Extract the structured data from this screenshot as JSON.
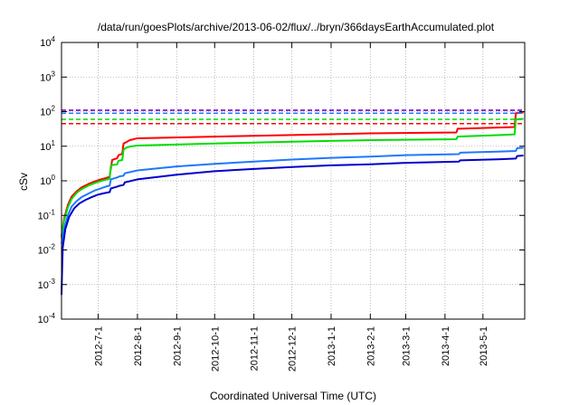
{
  "chart_data": {
    "type": "line",
    "title": "/data/run/goesPlots/archive/2013-06-02/flux/../bryn/366daysEarthAccumulated.plot",
    "xlabel": "Coordinated Universal Time (UTC)",
    "ylabel": "cSv",
    "xlim": [
      "2012-06-02",
      "2013-06-03"
    ],
    "yscale": "log",
    "ylim": [
      0.0001,
      10000
    ],
    "grid": true,
    "xticks": [
      "2012-7-1",
      "2012-8-1",
      "2012-9-1",
      "2012-10-1",
      "2012-11-1",
      "2012-12-1",
      "2013-1-1",
      "2013-2-1",
      "2013-3-1",
      "2013-4-1",
      "2013-5-1"
    ],
    "xtick_dates": [
      "2012-07-01",
      "2012-08-01",
      "2012-09-01",
      "2012-10-01",
      "2012-11-01",
      "2012-12-01",
      "2013-01-01",
      "2013-02-01",
      "2013-03-01",
      "2013-04-01",
      "2013-05-01"
    ],
    "yticks": [
      {
        "value": 0.0001,
        "base": "10",
        "exp": "-4"
      },
      {
        "value": 0.001,
        "base": "10",
        "exp": "-3"
      },
      {
        "value": 0.01,
        "base": "10",
        "exp": "-2"
      },
      {
        "value": 0.1,
        "base": "10",
        "exp": "-1"
      },
      {
        "value": 1,
        "base": "10",
        "exp": "0"
      },
      {
        "value": 10,
        "base": "10",
        "exp": "1"
      },
      {
        "value": 100,
        "base": "10",
        "exp": "2"
      },
      {
        "value": 1000,
        "base": "10",
        "exp": "3"
      },
      {
        "value": 10000,
        "base": "10",
        "exp": "4"
      }
    ],
    "series": [
      {
        "color": "#ff0000",
        "style": "solid",
        "x": [
          "2012-06-02",
          "2012-06-04",
          "2012-06-07",
          "2012-06-10",
          "2012-06-14",
          "2012-06-18",
          "2012-06-23",
          "2012-06-28",
          "2012-07-03",
          "2012-07-07",
          "2012-07-10",
          "2012-07-12",
          "2012-07-16",
          "2012-07-17",
          "2012-07-20",
          "2012-07-21",
          "2012-07-22",
          "2012-07-23",
          "2012-07-26",
          "2012-08-01",
          "2012-10-01",
          "2012-12-01",
          "2013-02-01",
          "2013-04-10",
          "2013-04-11",
          "2013-05-15",
          "2013-05-26",
          "2013-05-27",
          "2013-06-02"
        ],
        "y": [
          0.025,
          0.08,
          0.2,
          0.35,
          0.5,
          0.65,
          0.8,
          0.95,
          1.1,
          1.2,
          1.3,
          4.0,
          4.5,
          5.5,
          6.0,
          12.0,
          12.5,
          13.0,
          15.0,
          17.0,
          19.0,
          21.0,
          23.5,
          25.0,
          32.0,
          35.0,
          36.0,
          90.0,
          95.0
        ]
      },
      {
        "color": "#00dd00",
        "style": "solid",
        "x": [
          "2012-06-02",
          "2012-06-04",
          "2012-06-07",
          "2012-06-10",
          "2012-06-14",
          "2012-06-18",
          "2012-06-23",
          "2012-06-28",
          "2012-07-03",
          "2012-07-07",
          "2012-07-10",
          "2012-07-11",
          "2012-07-16",
          "2012-07-17",
          "2012-07-20",
          "2012-07-21",
          "2012-07-23",
          "2012-07-26",
          "2012-08-01",
          "2012-10-01",
          "2012-12-01",
          "2013-02-01",
          "2013-04-10",
          "2013-04-11",
          "2013-05-15",
          "2013-05-26",
          "2013-05-27",
          "2013-06-02"
        ],
        "y": [
          0.022,
          0.07,
          0.17,
          0.3,
          0.45,
          0.58,
          0.72,
          0.85,
          0.98,
          1.08,
          1.15,
          2.8,
          3.0,
          3.8,
          4.0,
          8.0,
          9.0,
          9.8,
          10.5,
          12.0,
          13.5,
          15.0,
          16.0,
          19.0,
          21.0,
          22.0,
          60.0,
          62.0
        ]
      },
      {
        "color": "#1e78ff",
        "style": "solid",
        "x": [
          "2012-06-02",
          "2012-06-04",
          "2012-06-07",
          "2012-06-10",
          "2012-06-14",
          "2012-06-18",
          "2012-06-23",
          "2012-06-28",
          "2012-07-03",
          "2012-07-07",
          "2012-07-10",
          "2012-07-11",
          "2012-07-16",
          "2012-07-18",
          "2012-07-21",
          "2012-07-22",
          "2012-08-01",
          "2012-09-01",
          "2012-10-01",
          "2012-11-01",
          "2012-12-01",
          "2013-01-01",
          "2013-02-01",
          "2013-03-01",
          "2013-04-12",
          "2013-04-13",
          "2013-05-15",
          "2013-05-27",
          "2013-05-28",
          "2013-06-02"
        ],
        "y": [
          0.015,
          0.04,
          0.1,
          0.18,
          0.26,
          0.34,
          0.42,
          0.52,
          0.6,
          0.68,
          0.72,
          1.1,
          1.25,
          1.35,
          1.4,
          1.65,
          2.0,
          2.6,
          3.1,
          3.6,
          4.1,
          4.6,
          5.0,
          5.5,
          5.9,
          6.5,
          7.0,
          7.3,
          8.8,
          9.0
        ]
      },
      {
        "color": "#0000cc",
        "style": "solid",
        "x": [
          "2012-06-02",
          "2012-06-02.5",
          "2012-06-03",
          "2012-06-05",
          "2012-06-08",
          "2012-06-12",
          "2012-06-16",
          "2012-06-21",
          "2012-06-26",
          "2012-07-01",
          "2012-07-06",
          "2012-07-10",
          "2012-07-11",
          "2012-07-16",
          "2012-07-18",
          "2012-07-21",
          "2012-07-22",
          "2012-08-01",
          "2012-09-01",
          "2012-10-01",
          "2012-11-01",
          "2012-12-01",
          "2013-01-01",
          "2013-02-01",
          "2013-03-01",
          "2013-04-12",
          "2013-04-13",
          "2013-05-15",
          "2013-05-27",
          "2013-05-28",
          "2013-06-02"
        ],
        "y": [
          0.0005,
          0.003,
          0.012,
          0.04,
          0.09,
          0.16,
          0.22,
          0.28,
          0.34,
          0.4,
          0.44,
          0.47,
          0.6,
          0.68,
          0.72,
          0.76,
          0.9,
          1.1,
          1.5,
          1.9,
          2.2,
          2.5,
          2.8,
          3.0,
          3.3,
          3.6,
          3.9,
          4.2,
          4.4,
          5.2,
          5.4
        ]
      },
      {
        "color": "#7700cc",
        "style": "dashed",
        "x": [
          "2012-06-02",
          "2013-06-03"
        ],
        "y": [
          110,
          110
        ]
      },
      {
        "color": "#1e78ff",
        "style": "dashed",
        "x": [
          "2012-06-02",
          "2013-06-03"
        ],
        "y": [
          90,
          90
        ]
      },
      {
        "color": "#00dd00",
        "style": "dashed",
        "x": [
          "2012-06-02",
          "2013-06-03"
        ],
        "y": [
          60,
          60
        ]
      },
      {
        "color": "#ff0000",
        "style": "dashed",
        "x": [
          "2012-06-02",
          "2013-06-03"
        ],
        "y": [
          45,
          45
        ]
      }
    ]
  }
}
